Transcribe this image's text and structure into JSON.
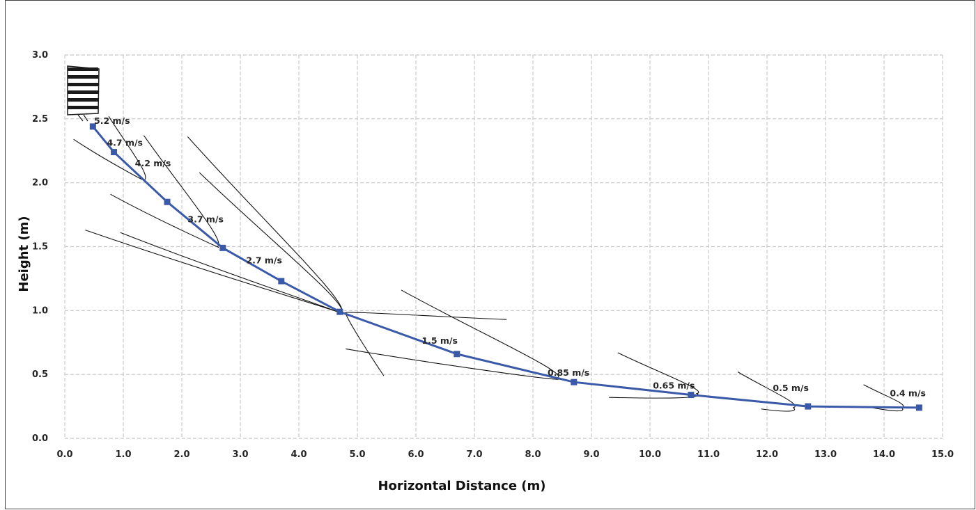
{
  "chart_data": {
    "type": "line",
    "title": "",
    "xlabel": "Horizontal Distance (m)",
    "ylabel": "Height (m)",
    "xlim": [
      0,
      15
    ],
    "ylim": [
      0,
      3
    ],
    "x_ticks": [
      "0.0",
      "1.0",
      "2.0",
      "3.0",
      "4.0",
      "5.0",
      "6.0",
      "7.0",
      "8.0",
      "9.0",
      "10.0",
      "11.0",
      "12.0",
      "13.0",
      "14.0",
      "15.0"
    ],
    "y_ticks": [
      "0.0",
      "0.5",
      "1.0",
      "1.5",
      "2.0",
      "2.5",
      "3.0"
    ],
    "grid": true,
    "series_color": "#3a59a8",
    "series": [
      {
        "x": [
          0.48,
          0.84,
          1.75,
          2.7,
          3.7,
          4.7,
          6.7,
          8.7,
          10.7,
          12.7,
          14.6
        ],
        "y": [
          2.44,
          2.24,
          1.85,
          1.49,
          1.23,
          0.99,
          0.66,
          0.44,
          0.34,
          0.25,
          0.24
        ]
      }
    ],
    "annotations": [
      {
        "text": "5.2 m/s",
        "x": 0.5,
        "y": 2.46
      },
      {
        "text": "4.7 m/s",
        "x": 0.72,
        "y": 2.29
      },
      {
        "text": "4.2 m/s",
        "x": 1.2,
        "y": 2.13
      },
      {
        "text": "3.7 m/s",
        "x": 2.1,
        "y": 1.69
      },
      {
        "text": "2.7 m/s",
        "x": 3.1,
        "y": 1.37
      },
      {
        "text": "1.5 m/s",
        "x": 6.1,
        "y": 0.74
      },
      {
        "text": "0.85 m/s",
        "x": 8.25,
        "y": 0.49
      },
      {
        "text": "0.65 m/s",
        "x": 10.05,
        "y": 0.39
      },
      {
        "text": "0.5 m/s",
        "x": 12.1,
        "y": 0.37
      },
      {
        "text": "0.4 m/s",
        "x": 14.1,
        "y": 0.33
      }
    ],
    "plumes": [
      {
        "tip": [
          1.35,
          2.02
        ],
        "a": [
          0.15,
          2.34
        ],
        "b": [
          0.75,
          2.52
        ]
      },
      {
        "tip": [
          2.6,
          1.5
        ],
        "a": [
          0.78,
          1.91
        ],
        "b": [
          1.35,
          2.37
        ]
      },
      {
        "tip": [
          4.7,
          0.98
        ],
        "a": [
          0.95,
          1.61
        ],
        "b": [
          2.3,
          2.08
        ]
      },
      {
        "tip": [
          4.7,
          0.98
        ],
        "a": [
          0.35,
          1.63
        ],
        "b": [
          2.1,
          2.36
        ]
      },
      {
        "tip": [
          8.4,
          0.47
        ],
        "a": [
          4.8,
          0.7
        ],
        "b": [
          5.75,
          1.16
        ]
      },
      {
        "tip": [
          4.8,
          0.98
        ],
        "a": [
          5.45,
          0.49
        ],
        "b": [
          7.55,
          0.93
        ]
      },
      {
        "tip": [
          10.8,
          0.35
        ],
        "a": [
          9.3,
          0.32
        ],
        "b": [
          9.45,
          0.67
        ]
      },
      {
        "tip": [
          12.45,
          0.24
        ],
        "a": [
          11.9,
          0.23
        ],
        "b": [
          11.5,
          0.52
        ]
      },
      {
        "tip": [
          14.3,
          0.24
        ],
        "a": [
          13.8,
          0.24
        ],
        "b": [
          13.65,
          0.42
        ]
      }
    ]
  }
}
